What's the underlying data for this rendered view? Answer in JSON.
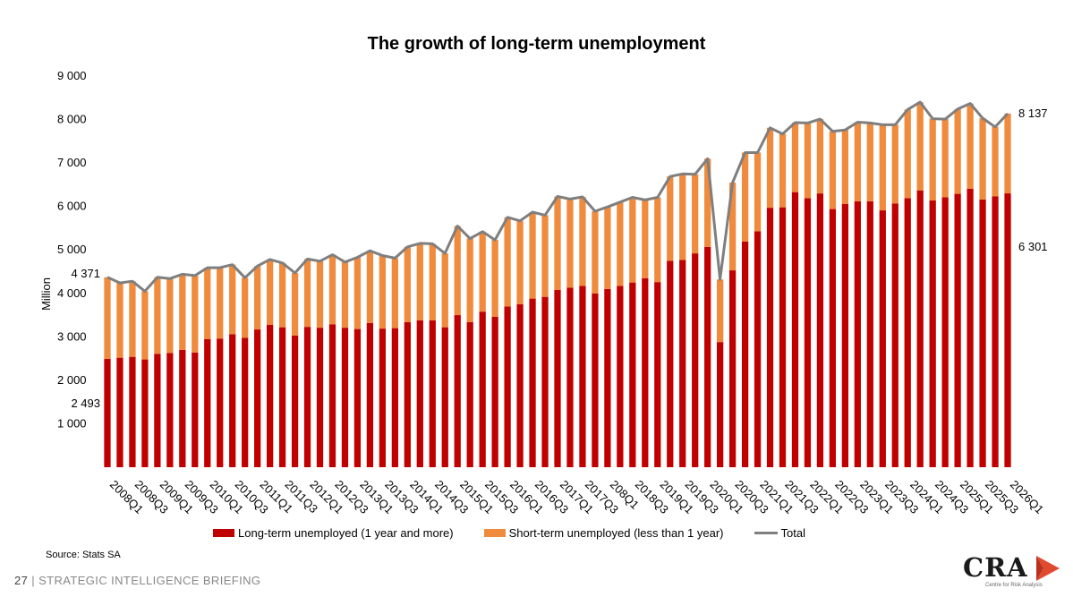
{
  "chart_data": {
    "type": "bar",
    "stacked": true,
    "title": "The growth of long-term unemployment",
    "ylabel": "Million",
    "xlabel": "",
    "ylim": [
      0,
      9000
    ],
    "yticks": [
      "1 000",
      "2 000",
      "3 000",
      "4 000",
      "5 000",
      "6 000",
      "7 000",
      "8 000",
      "9 000"
    ],
    "ytick_values": [
      1000,
      2000,
      3000,
      4000,
      5000,
      6000,
      7000,
      8000,
      9000
    ],
    "grid": false,
    "legend_position": "bottom",
    "x": [
      "2008Q1",
      "2008Q2",
      "2008Q3",
      "2008Q4",
      "2009Q1",
      "2009Q2",
      "2009Q3",
      "2009Q4",
      "2010Q1",
      "2010Q2",
      "2010Q3",
      "2010Q4",
      "2011Q1",
      "2011Q2",
      "2011Q3",
      "2011Q4",
      "2012Q1",
      "2012Q2",
      "2012Q3",
      "2012Q4",
      "2013Q1",
      "2013Q2",
      "2013Q3",
      "2013Q4",
      "2014Q1",
      "2014Q2",
      "2014Q3",
      "2014Q4",
      "2015Q1",
      "2015Q2",
      "2015Q3",
      "2015Q4",
      "2016Q1",
      "2016Q2",
      "2016Q3",
      "2016Q4",
      "2017Q1",
      "2017Q2",
      "2017Q3",
      "2017Q4",
      "2018Q1",
      "2018Q2",
      "2018Q3",
      "2018Q4",
      "2019Q1",
      "2019Q2",
      "2019Q3",
      "2019Q4",
      "2020Q1",
      "2020Q2",
      "2020Q3",
      "2020Q4",
      "2021Q1",
      "2021Q2",
      "2021Q3",
      "2021Q4",
      "2022Q1",
      "2022Q2",
      "2022Q3",
      "2022Q4",
      "2023Q1",
      "2023Q2",
      "2023Q3",
      "2023Q4",
      "2024Q1",
      "2024Q2",
      "2024Q3",
      "2024Q4",
      "2025Q1",
      "2025Q2",
      "2025Q3",
      "2025Q4",
      "2026Q1"
    ],
    "x_tick_labels": [
      "2008Q1",
      "2008Q3",
      "2009Q1",
      "2009Q3",
      "2010Q1",
      "2010Q3",
      "2011Q1",
      "2011Q3",
      "2012Q1",
      "2012Q3",
      "2013Q1",
      "2013Q3",
      "2014Q1",
      "2014Q3",
      "2015Q1",
      "2015Q3",
      "2016Q1",
      "2016Q3",
      "2017Q1",
      "2017Q3",
      "208Q1",
      "2018Q3",
      "2019Q1",
      "2019Q3",
      "2020Q1",
      "2020Q3",
      "2021Q1",
      "2021Q3",
      "2022Q1",
      "2022Q3",
      "2023Q1",
      "2023Q3",
      "2024Q1",
      "2024Q3",
      "2025Q1",
      "2025Q3",
      "2026Q1"
    ],
    "series": [
      {
        "name": "Long-term unemployed (1 year and more)",
        "color": "#C00000",
        "values": [
          2493,
          2520,
          2540,
          2480,
          2610,
          2630,
          2700,
          2640,
          2950,
          2960,
          3060,
          2980,
          3170,
          3280,
          3220,
          3030,
          3230,
          3210,
          3290,
          3210,
          3180,
          3320,
          3190,
          3200,
          3340,
          3380,
          3380,
          3220,
          3500,
          3340,
          3580,
          3460,
          3700,
          3750,
          3880,
          3920,
          4080,
          4130,
          4170,
          4000,
          4100,
          4170,
          4250,
          4350,
          4260,
          4750,
          4770,
          4920,
          5070,
          2880,
          4530,
          5190,
          5430,
          5970,
          5980,
          6330,
          6190,
          6300,
          5940,
          6060,
          6120,
          6120,
          5910,
          6070,
          6190,
          6370,
          6140,
          6210,
          6290,
          6410,
          6160,
          6230,
          6301
        ]
      },
      {
        "name": "Short-term unemployed (less than 1 year)",
        "color": "#F08A3C",
        "values": [
          1878,
          1720,
          1740,
          1570,
          1760,
          1710,
          1740,
          1770,
          1640,
          1630,
          1600,
          1380,
          1460,
          1500,
          1480,
          1440,
          1560,
          1530,
          1600,
          1510,
          1650,
          1660,
          1680,
          1610,
          1730,
          1770,
          1760,
          1700,
          2050,
          1920,
          1840,
          1770,
          2050,
          1920,
          1990,
          1880,
          2150,
          2040,
          2050,
          1890,
          1890,
          1930,
          1960,
          1800,
          1950,
          1940,
          1980,
          1820,
          2030,
          1440,
          2020,
          2050,
          1810,
          1840,
          1690,
          1600,
          1730,
          1710,
          1790,
          1700,
          1820,
          1800,
          1970,
          1810,
          2040,
          2030,
          1880,
          1800,
          1950,
          1960,
          1870,
          1600,
          1836
        ]
      },
      {
        "name": "Total",
        "color": "#7F7F7F",
        "values": [
          4371,
          4240,
          4280,
          4050,
          4370,
          4340,
          4440,
          4410,
          4590,
          4590,
          4660,
          4360,
          4630,
          4780,
          4700,
          4470,
          4790,
          4740,
          4890,
          4720,
          4830,
          4980,
          4870,
          4810,
          5070,
          5150,
          5140,
          4920,
          5550,
          5260,
          5420,
          5230,
          5750,
          5670,
          5870,
          5800,
          6230,
          6170,
          6220,
          5890,
          5990,
          6100,
          6210,
          6150,
          6210,
          6690,
          6750,
          6740,
          7100,
          4320,
          6550,
          7240,
          7240,
          7810,
          7670,
          7930,
          7920,
          8010,
          7730,
          7760,
          7940,
          7920,
          7880,
          7880,
          8230,
          8400,
          8020,
          8010,
          8240,
          8370,
          8030,
          7830,
          8137
        ]
      }
    ],
    "annotations": [
      {
        "text": "4 371",
        "x": "2008Q1",
        "value": 4371
      },
      {
        "text": "2 493",
        "x": "2008Q1",
        "value": 2493
      },
      {
        "text": "8 137",
        "x": "2026Q1",
        "value": 8137
      },
      {
        "text": "6 301",
        "x": "2026Q1",
        "value": 6301
      }
    ]
  },
  "source": "Source: Stats SA",
  "footer": {
    "page": "27",
    "separator": "|",
    "text": "STRATEGIC INTELLIGENCE BRIEFING"
  },
  "logo": {
    "name": "CRA",
    "subtitle": "Centre for Risk Analysis",
    "accent": "#E04A2F"
  }
}
